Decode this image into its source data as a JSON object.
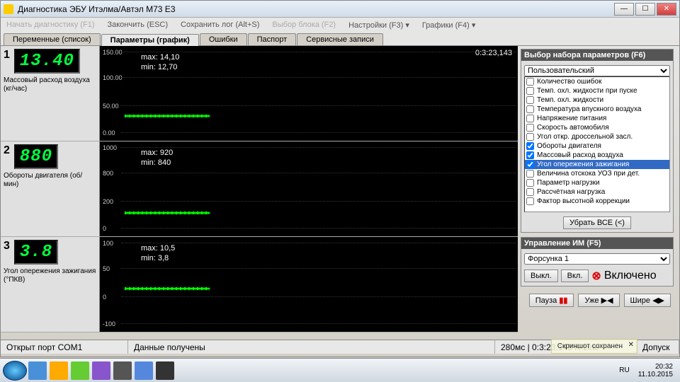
{
  "window": {
    "title": "Диагностика ЭБУ Итэлма/Автэл М73 E3"
  },
  "menu": {
    "start": "Начать диагностику (F1)",
    "finish": "Закончить (ESC)",
    "savelog": "Сохранить лог (Alt+S)",
    "block": "Выбор блока (F2)",
    "settings": "Настройки (F3) ▾",
    "graphs": "Графики (F4) ▾"
  },
  "tabs": {
    "t1": "Переменные (список)",
    "t2": "Параметры (график)",
    "t3": "Ошибки",
    "t4": "Паспорт",
    "t5": "Сервисные записи"
  },
  "timer": "0:3:23,143",
  "params": [
    {
      "idx": "1",
      "value": "13.40",
      "label": "Массовый расход воздуха (кг/час)",
      "max": "max: 14,10",
      "min": "min: 12,70",
      "ymax": "150.00",
      "yhalf": "100.00",
      "yq": "50.00",
      "yzero": "0.00",
      "tracetop": 98
    },
    {
      "idx": "2",
      "value": "880",
      "label": "Обороты двигателя (об/мин)",
      "max": "max: 920",
      "min": "min: 840",
      "ymax": "1000",
      "yhalf": "800",
      "yq": "200",
      "yzero": "0",
      "tracetop": 100
    },
    {
      "idx": "3",
      "value": "3.8",
      "label": "Угол опережения зажигания (°ПКВ)",
      "max": "max: 10,5",
      "min": "min: 3,8",
      "ymax": "100",
      "yhalf": "50",
      "yq": "0",
      "yzero": "-100",
      "tracetop": 72
    }
  ],
  "paramset": {
    "title": "Выбор набора параметров (F6)",
    "select": "Пользовательский",
    "items": [
      {
        "c": false,
        "t": "Количество ошибок"
      },
      {
        "c": false,
        "t": "Темп. охл. жидкости при пуске"
      },
      {
        "c": false,
        "t": "Темп. охл. жидкости"
      },
      {
        "c": false,
        "t": "Температура впускного воздуха"
      },
      {
        "c": false,
        "t": "Напряжение питания"
      },
      {
        "c": false,
        "t": "Скорость автомобиля"
      },
      {
        "c": false,
        "t": "Угол откр. дроссельной засл."
      },
      {
        "c": true,
        "t": "Обороты двигателя"
      },
      {
        "c": true,
        "t": "Массовый расход воздуха"
      },
      {
        "c": true,
        "t": "Угол опережения зажигания",
        "sel": true
      },
      {
        "c": false,
        "t": "Величина отскока УОЗ при дет."
      },
      {
        "c": false,
        "t": "Параметр нагрузки"
      },
      {
        "c": false,
        "t": "Рассчётная нагрузка"
      },
      {
        "c": false,
        "t": "Фактор высотной коррекции"
      }
    ],
    "clear": "Убрать ВСЕ (<)"
  },
  "im": {
    "title": "Управление ИМ (F5)",
    "select": "Форсунка 1",
    "off": "Выкл.",
    "on": "Вкл.",
    "status": "Включено"
  },
  "ctrl": {
    "pause": "Пауза",
    "narrow": "Уже",
    "wide": "Шире"
  },
  "status": {
    "port": "Открыт порт COM1",
    "data": "Данные получены",
    "time": "280мс | 0:3:23,143 K-Line",
    "dopusk": "Допуск"
  },
  "tray": {
    "lang": "RU",
    "time": "20:32",
    "date": "11.10.2015"
  },
  "tooltip": "Скриншот сохранен"
}
